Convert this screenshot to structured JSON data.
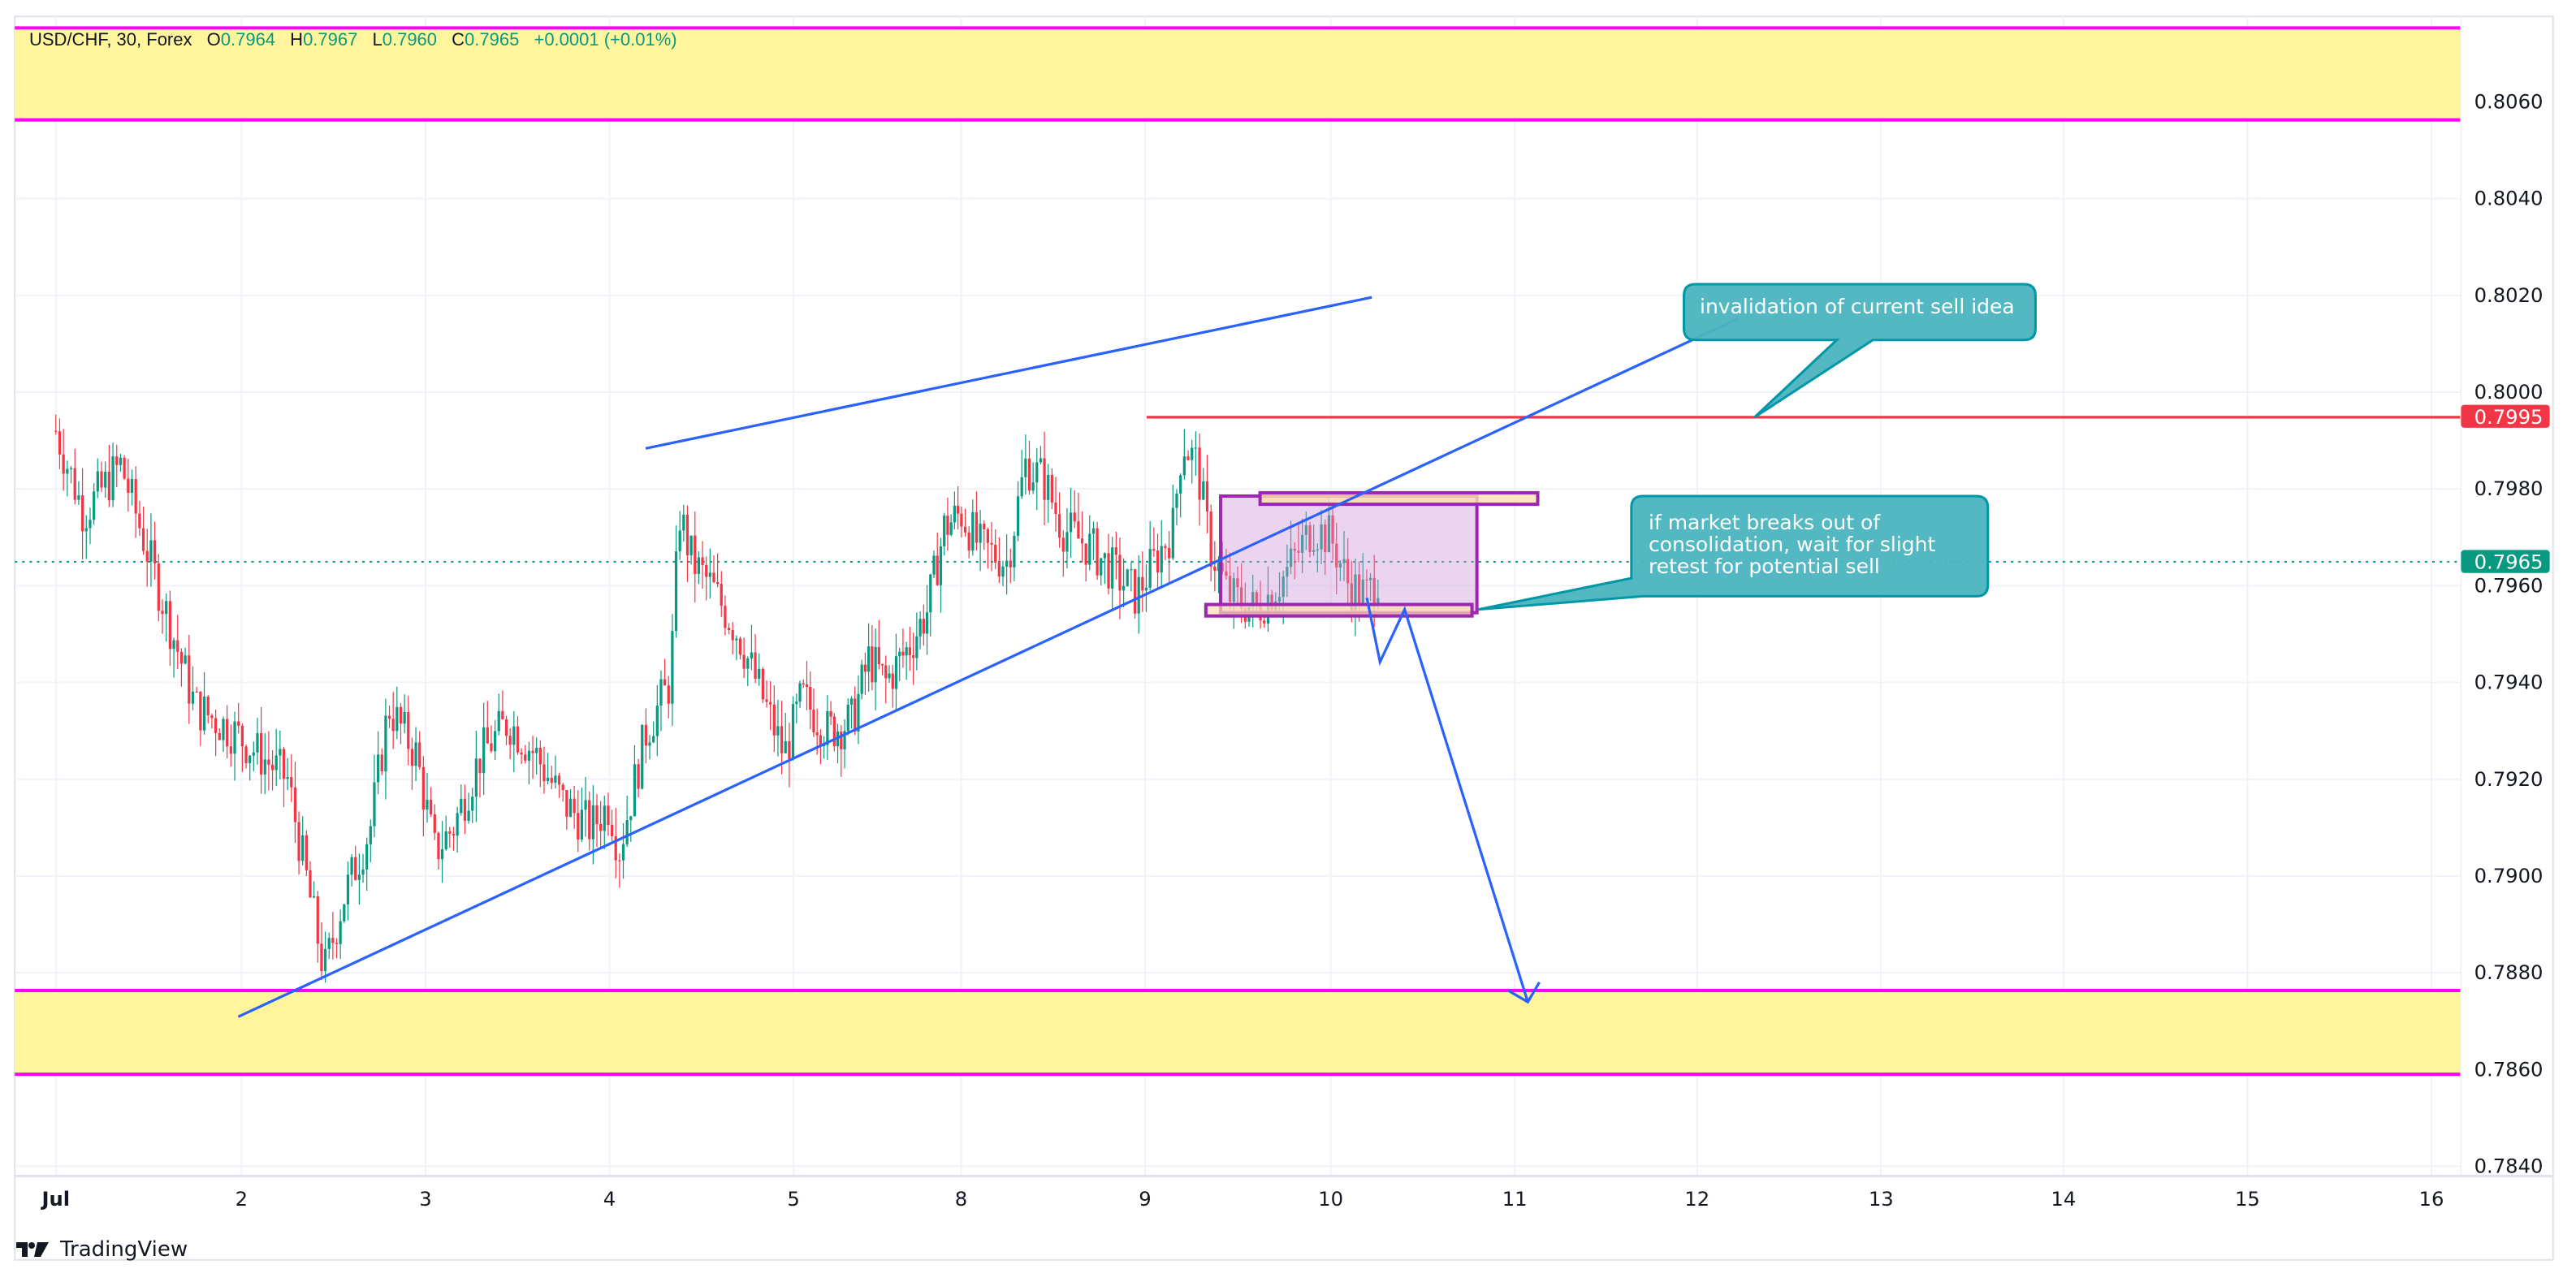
{
  "header": {
    "symbol": "USD/CHF, 30, Forex",
    "open_label": "O",
    "open": "0.7964",
    "high_label": "H",
    "high": "0.7967",
    "low_label": "L",
    "low": "0.7960",
    "close_label": "C",
    "close": "0.7965",
    "change": "+0.0001 (+0.01%)"
  },
  "branding": {
    "name": "TradingView",
    "icon": "tradingview-logo-icon"
  },
  "colors": {
    "up": "#089981",
    "down": "#F23645",
    "trendline": "#2962FF",
    "zone_fill": "#FFF59D",
    "zone_border": "#FF00FF",
    "resistance": "#F23645",
    "box_border": "#9C27B0",
    "box_fill": "#E1BEE7",
    "callout_fill": "#4BB4C0",
    "callout_border": "#0097A7",
    "last_price": "#089981"
  },
  "price_axis": {
    "labels": [
      "0.8060",
      "0.8040",
      "0.8020",
      "0.8000",
      "0.7980",
      "0.7960",
      "0.7940",
      "0.7920",
      "0.7900",
      "0.7880",
      "0.7860",
      "0.7840"
    ],
    "badges": [
      {
        "value": "0.7995",
        "color": "#F23645"
      },
      {
        "value": "0.7965",
        "color": "#089981"
      }
    ]
  },
  "time_axis": {
    "labels": [
      "Jul",
      "2",
      "3",
      "4",
      "5",
      "8",
      "9",
      "10",
      "11",
      "12",
      "13",
      "14",
      "15",
      "16"
    ]
  },
  "annotations": {
    "callout_1": "invalidation of current sell idea",
    "callout_2_lines": [
      "if market breaks out of",
      "consolidation, wait for slight",
      "retest for potential sell"
    ]
  },
  "chart_data": {
    "type": "candlestick",
    "title": "USD/CHF, 30, Forex",
    "xlabel": "",
    "ylabel": "",
    "ylim": [
      0.7836,
      0.8078
    ],
    "x_ticks": [
      "Jul",
      "2",
      "3",
      "4",
      "5",
      "8",
      "9",
      "10",
      "11",
      "12",
      "13",
      "14",
      "15",
      "16"
    ],
    "y_ticks": [
      0.806,
      0.804,
      0.802,
      0.8,
      0.798,
      0.796,
      0.794,
      0.792,
      0.79,
      0.788,
      0.786,
      0.784
    ],
    "grid": true,
    "last": {
      "open": 0.7964,
      "high": 0.7967,
      "low": 0.796,
      "close": 0.7965,
      "change": 0.0001,
      "change_pct": 0.01
    },
    "close_path": [
      [
        0.0,
        0.7992
      ],
      [
        0.15,
        0.7975
      ],
      [
        0.35,
        0.7985
      ],
      [
        0.55,
        0.796
      ],
      [
        0.75,
        0.7935
      ],
      [
        0.95,
        0.793
      ],
      [
        1.1,
        0.7925
      ],
      [
        1.25,
        0.792
      ],
      [
        1.35,
        0.79
      ],
      [
        1.45,
        0.788
      ],
      [
        1.55,
        0.7895
      ],
      [
        1.7,
        0.791
      ],
      [
        1.8,
        0.7935
      ],
      [
        1.95,
        0.7925
      ],
      [
        2.05,
        0.7905
      ],
      [
        2.15,
        0.791
      ],
      [
        2.3,
        0.7925
      ],
      [
        2.45,
        0.7932
      ],
      [
        2.6,
        0.7925
      ],
      [
        2.75,
        0.7915
      ],
      [
        2.9,
        0.791
      ],
      [
        3.0,
        0.7915
      ],
      [
        3.05,
        0.7905
      ],
      [
        3.2,
        0.793
      ],
      [
        3.33,
        0.794
      ],
      [
        3.38,
        0.7975
      ],
      [
        3.45,
        0.7965
      ],
      [
        3.55,
        0.796
      ],
      [
        3.7,
        0.795
      ],
      [
        3.85,
        0.7935
      ],
      [
        3.95,
        0.7925
      ],
      [
        4.05,
        0.7937
      ],
      [
        4.2,
        0.793
      ],
      [
        4.35,
        0.7932
      ],
      [
        4.45,
        0.7945
      ],
      [
        4.55,
        0.794
      ],
      [
        4.7,
        0.7948
      ],
      [
        4.8,
        0.7955
      ],
      [
        4.9,
        0.7972
      ],
      [
        5.0,
        0.7975
      ],
      [
        5.1,
        0.7968
      ],
      [
        5.25,
        0.7965
      ],
      [
        5.35,
        0.7985
      ],
      [
        5.45,
        0.7982
      ],
      [
        5.55,
        0.7972
      ],
      [
        5.7,
        0.7968
      ],
      [
        5.85,
        0.7962
      ],
      [
        5.95,
        0.7958
      ],
      [
        6.05,
        0.7965
      ],
      [
        6.15,
        0.7972
      ],
      [
        6.2,
        0.799
      ],
      [
        6.28,
        0.7985
      ],
      [
        6.35,
        0.7968
      ],
      [
        6.45,
        0.7958
      ],
      [
        6.6,
        0.7955
      ],
      [
        6.75,
        0.7962
      ],
      [
        6.9,
        0.7972
      ],
      [
        7.0,
        0.797
      ],
      [
        7.1,
        0.796
      ],
      [
        7.2,
        0.7958
      ],
      [
        7.27,
        0.7963
      ]
    ],
    "levels": {
      "supply_zone": [
        0.8056,
        0.8075
      ],
      "demand_zone": [
        0.7859,
        0.7876
      ],
      "resistance_line": 0.7995,
      "last_price_line": 0.7965
    },
    "consolidation_box": {
      "top": 0.7978,
      "bottom": 0.7953
    },
    "trendlines": [
      {
        "name": "ascending-support",
        "from": [
          1.0,
          0.787
        ],
        "to": [
          8.1,
          0.8015
        ]
      },
      {
        "name": "upper-channel",
        "from": [
          3.2,
          0.7988
        ],
        "to": [
          6.3,
          0.802
        ]
      }
    ],
    "projection_path": [
      [
        7.2,
        0.7958
      ],
      [
        7.28,
        0.7945
      ],
      [
        7.4,
        0.7956
      ],
      [
        8.05,
        0.7873
      ]
    ],
    "annotations": [
      "invalidation of current sell idea",
      "if market breaks out of consolidation, wait for slight retest for potential sell"
    ]
  }
}
